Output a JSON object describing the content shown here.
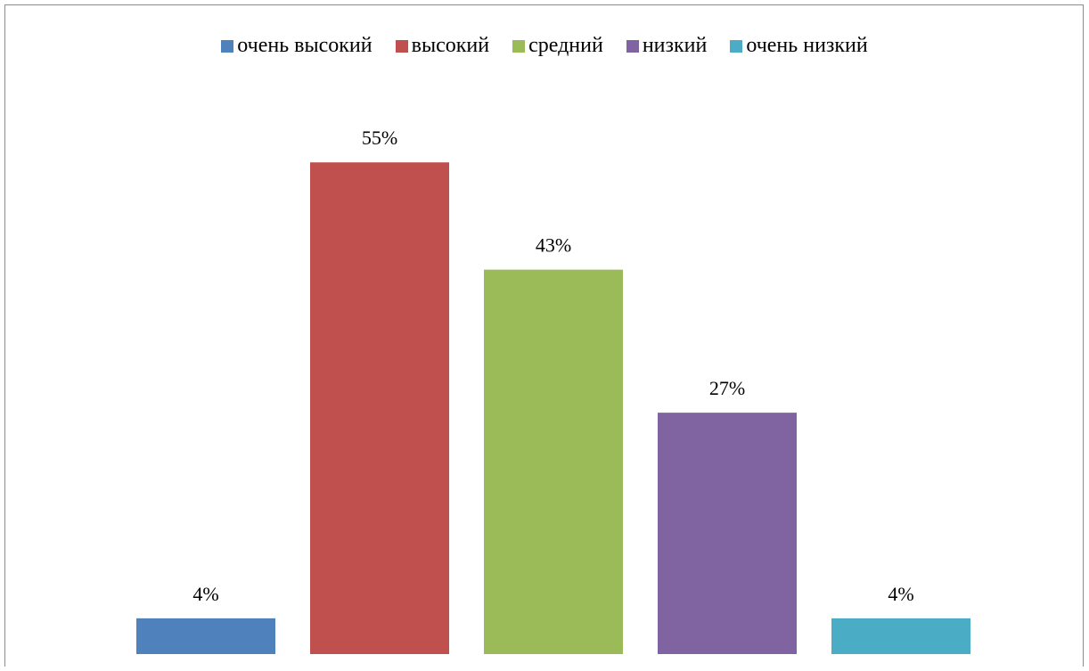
{
  "chart_data": {
    "type": "bar",
    "categories": [
      "очень высокий",
      "высокий",
      "средний",
      "низкий",
      "очень низкий"
    ],
    "values": [
      4,
      55,
      43,
      27,
      4
    ],
    "labels": [
      "4%",
      "55%",
      "43%",
      "27%",
      "4%"
    ],
    "colors": [
      "#4f81bd",
      "#c0504d",
      "#9bbb59",
      "#8064a2",
      "#4bacc6"
    ],
    "ylim": [
      0,
      62
    ],
    "legend_position": "top",
    "grid": false
  }
}
